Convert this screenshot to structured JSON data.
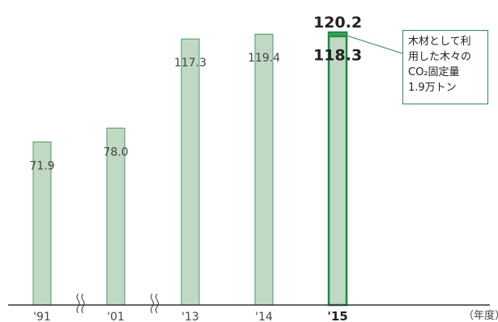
{
  "chart_data": {
    "type": "bar",
    "categories": [
      "'91",
      "'01",
      "'13",
      "'14",
      "'15"
    ],
    "values": [
      71.9,
      78.0,
      117.3,
      119.4,
      120.2
    ],
    "value_labels": [
      "71.9",
      "78.0",
      "117.3",
      "119.4",
      "120.2"
    ],
    "highlight": {
      "category": "'15",
      "total": 120.2,
      "base": 118.3,
      "base_label": "118.3",
      "wood_co2_fixed": 1.9
    },
    "callout_lines": [
      "木材として利",
      "用した木々の",
      "CO₂固定量",
      "1.9万トン"
    ],
    "unit_label": "（年度）",
    "axis_breaks_after": [
      "'91",
      "'01"
    ],
    "ylim": [
      0,
      125
    ],
    "colors": {
      "bar_fill": "#c1d8c4",
      "bar_stroke": "#4a9a63",
      "highlight_stroke": "#1e8a45",
      "highlight_cap": "#2e9b53",
      "axis": "#333333",
      "callout_border": "#2e8b57"
    }
  }
}
